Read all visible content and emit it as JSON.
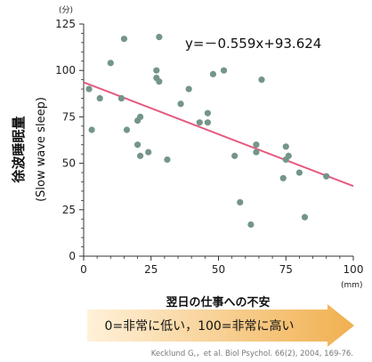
{
  "chart_data": {
    "type": "scatter",
    "y_unit": "(分)",
    "ylabel_jp": "徐波睡眠量",
    "ylabel_en": "(Slow wave sleep)",
    "x_unit": "(mm)",
    "xlabel": "翌日の仕事への不安",
    "scale_caption": "0=非常に低い，100=非常に高い",
    "equation": "y=－0.559x+93.624",
    "citation": "Kecklund G,，et al. Biol Psychol. 66(2), 2004, 169-76.",
    "xlim": [
      0,
      100
    ],
    "ylim": [
      0,
      125
    ],
    "x_ticks": [
      "0",
      "25",
      "50",
      "75",
      "100"
    ],
    "x_tick_values": [
      0,
      25,
      50,
      75,
      100
    ],
    "y_ticks": [
      "0",
      "25",
      "50",
      "75",
      "100",
      "125"
    ],
    "y_tick_values": [
      0,
      25,
      50,
      75,
      100,
      125
    ],
    "x_minor_step": 5,
    "y_minor_step": 5,
    "trendline": {
      "slope": -0.559,
      "intercept": 93.624,
      "x_start": 0,
      "x_end": 100
    },
    "points": [
      {
        "x": 2,
        "y": 90
      },
      {
        "x": 3,
        "y": 68
      },
      {
        "x": 6,
        "y": 85
      },
      {
        "x": 10,
        "y": 104
      },
      {
        "x": 14,
        "y": 85
      },
      {
        "x": 15,
        "y": 117
      },
      {
        "x": 16,
        "y": 68
      },
      {
        "x": 20,
        "y": 60
      },
      {
        "x": 20,
        "y": 73
      },
      {
        "x": 21,
        "y": 75
      },
      {
        "x": 21,
        "y": 54
      },
      {
        "x": 24,
        "y": 56
      },
      {
        "x": 27,
        "y": 100
      },
      {
        "x": 27,
        "y": 96
      },
      {
        "x": 28,
        "y": 118
      },
      {
        "x": 28,
        "y": 94
      },
      {
        "x": 31,
        "y": 52
      },
      {
        "x": 36,
        "y": 82
      },
      {
        "x": 39,
        "y": 90
      },
      {
        "x": 43,
        "y": 72
      },
      {
        "x": 46,
        "y": 77
      },
      {
        "x": 46,
        "y": 72
      },
      {
        "x": 48,
        "y": 98
      },
      {
        "x": 52,
        "y": 100
      },
      {
        "x": 56,
        "y": 54
      },
      {
        "x": 58,
        "y": 29
      },
      {
        "x": 62,
        "y": 17
      },
      {
        "x": 64,
        "y": 60
      },
      {
        "x": 64,
        "y": 56
      },
      {
        "x": 66,
        "y": 95
      },
      {
        "x": 74,
        "y": 42
      },
      {
        "x": 75,
        "y": 59
      },
      {
        "x": 75,
        "y": 52
      },
      {
        "x": 76,
        "y": 54
      },
      {
        "x": 80,
        "y": 45
      },
      {
        "x": 82,
        "y": 21
      },
      {
        "x": 90,
        "y": 43
      }
    ]
  },
  "colors": {
    "points": "#74958a",
    "trendline": "#e55a7f",
    "axis": "#333333",
    "arrow_light": "#fff1d9",
    "arrow_dark": "#f0b050"
  }
}
